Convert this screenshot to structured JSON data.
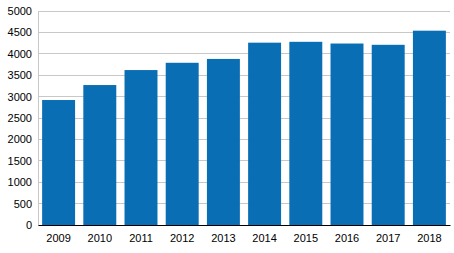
{
  "chart_data": {
    "type": "bar",
    "categories": [
      "2009",
      "2010",
      "2011",
      "2012",
      "2013",
      "2014",
      "2015",
      "2016",
      "2017",
      "2018"
    ],
    "values": [
      2920,
      3270,
      3620,
      3790,
      3880,
      4260,
      4280,
      4240,
      4210,
      4540
    ],
    "color": "#0a6eb4",
    "ylim": [
      0,
      5000
    ],
    "yticks": [
      0,
      500,
      1000,
      1500,
      2000,
      2500,
      3000,
      3500,
      4000,
      4500,
      5000
    ],
    "grid": true
  }
}
